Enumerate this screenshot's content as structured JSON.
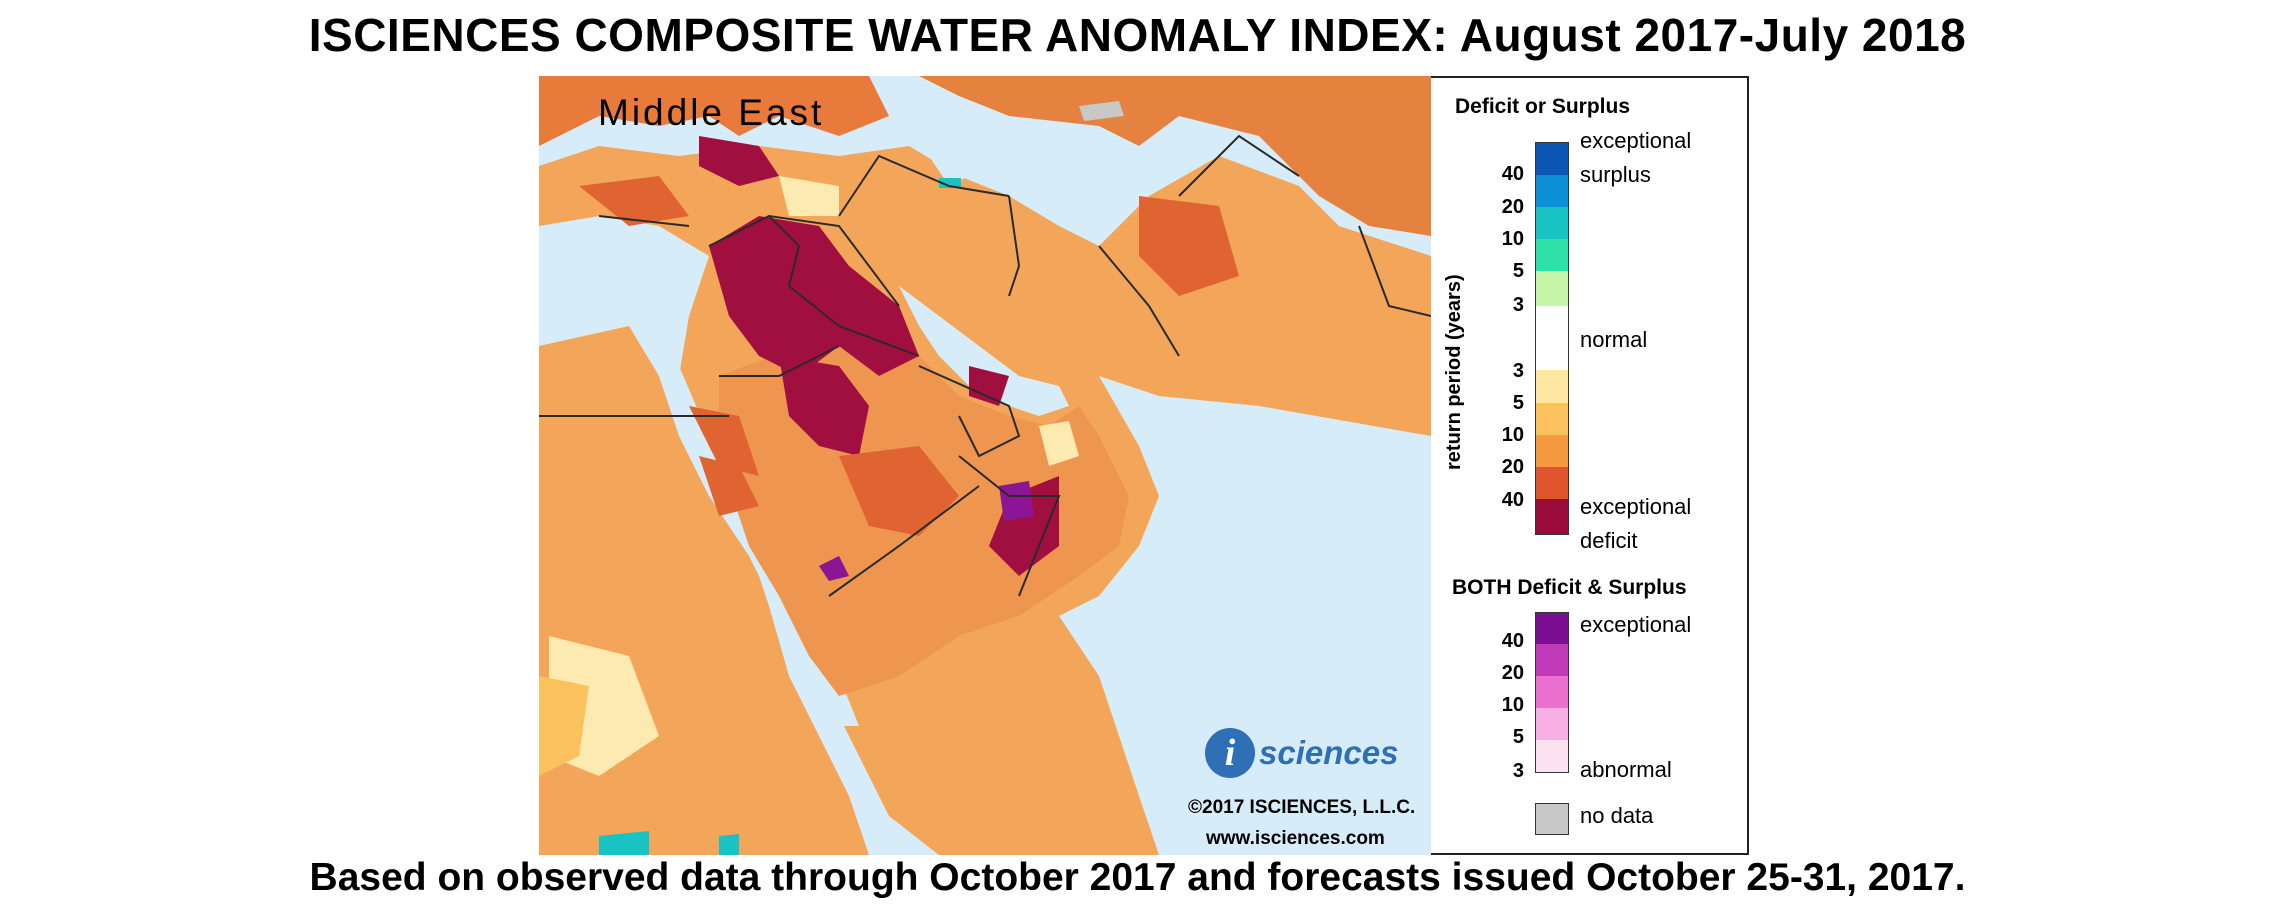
{
  "title": "ISCIENCES COMPOSITE WATER ANOMALY INDEX: August 2017-July 2018",
  "footer": "Based on observed data through October 2017 and forecasts issued October 25-31, 2017.",
  "region_label": "Middle East",
  "logo": {
    "mark": "i",
    "text": "sciences"
  },
  "copyright": "©2017 ISCIENCES, L.L.C.",
  "website": "www.isciences.com",
  "legend": {
    "deficit_surplus_heading": "Deficit or Surplus",
    "axis_label": "return period (years)",
    "surplus_label_1": "exceptional",
    "surplus_label_2": "surplus",
    "normal_label": "normal",
    "deficit_label_1": "exceptional",
    "deficit_label_2": "deficit",
    "surplus_ticks": [
      "40",
      "20",
      "10",
      "5",
      "3"
    ],
    "deficit_ticks": [
      "3",
      "5",
      "10",
      "20",
      "40"
    ],
    "both_heading": "BOTH Deficit & Surplus",
    "both_label_top": "exceptional",
    "both_label_bottom": "abnormal",
    "both_ticks": [
      "40",
      "20",
      "10",
      "5",
      "3"
    ],
    "nodata_label": "no data",
    "colors": {
      "surplus": [
        "#0b55b4",
        "#0d8fd8",
        "#19c3c3",
        "#2fe0a8",
        "#c4f5a8"
      ],
      "normal": "#ffffff",
      "deficit": [
        "#fde7a2",
        "#fbc15d",
        "#f59a3e",
        "#e0562c",
        "#9a0b3c"
      ],
      "both": [
        "#7b0f94",
        "#c03ab9",
        "#ea6fcf",
        "#f8b0e4",
        "#fde3f2"
      ],
      "nodata": "#c8c8c8"
    }
  },
  "map_colors": {
    "water": "#d6ecf8",
    "moderate_deficit": "#f3a65a",
    "severe_deficit": "#e06432",
    "extreme_deficit": "#a10f40",
    "normal": "#fdeab0",
    "mixed": "#8a1595",
    "surplus": "#19c3c3"
  }
}
